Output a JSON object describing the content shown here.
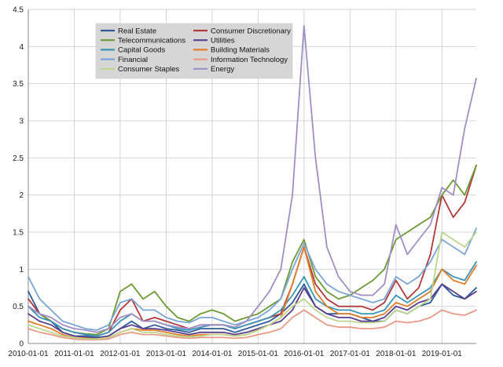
{
  "chart_data": {
    "type": "line",
    "grid": true,
    "legend_placement": "top-left",
    "ylim": [
      0,
      4.5
    ],
    "yticks": [
      0,
      0.5,
      1,
      1.5,
      2,
      2.5,
      3,
      3.5,
      4,
      4.5
    ],
    "ytick_labels": [
      "0",
      "0.5",
      "1",
      "1.5",
      "2",
      "2.5",
      "3",
      "3.5",
      "4",
      "4.5"
    ],
    "xlim": [
      "2010-01-01",
      "2019-10-01"
    ],
    "xticks": [
      "2010-01-01",
      "2011-01-01",
      "2012-01-01",
      "2013-01-01",
      "2014-01-01",
      "2015-01-01",
      "2016-01-01",
      "2017-01-01",
      "2018-01-01",
      "2019-01-01"
    ],
    "x": [
      "2010-01-01",
      "2010-04-01",
      "2010-07-01",
      "2010-10-01",
      "2011-01-01",
      "2011-04-01",
      "2011-07-01",
      "2011-10-01",
      "2012-01-01",
      "2012-04-01",
      "2012-07-01",
      "2012-10-01",
      "2013-01-01",
      "2013-04-01",
      "2013-07-01",
      "2013-10-01",
      "2014-01-01",
      "2014-04-01",
      "2014-07-01",
      "2014-10-01",
      "2015-01-01",
      "2015-04-01",
      "2015-07-01",
      "2015-10-01",
      "2016-01-01",
      "2016-04-01",
      "2016-07-01",
      "2016-10-01",
      "2017-01-01",
      "2017-04-01",
      "2017-07-01",
      "2017-10-01",
      "2018-01-01",
      "2018-04-01",
      "2018-07-01",
      "2018-10-01",
      "2019-01-01",
      "2019-04-01",
      "2019-07-01",
      "2019-10-01"
    ],
    "series": [
      {
        "name": "Real Estate",
        "color": "#2e5a9a",
        "values": [
          0.7,
          0.4,
          0.3,
          0.15,
          0.1,
          0.1,
          0.08,
          0.1,
          0.2,
          0.3,
          0.2,
          0.25,
          0.2,
          0.18,
          0.15,
          0.2,
          0.2,
          0.2,
          0.15,
          0.2,
          0.25,
          0.3,
          0.4,
          0.55,
          0.8,
          0.5,
          0.4,
          0.4,
          0.4,
          0.35,
          0.3,
          0.3,
          0.45,
          0.4,
          0.5,
          0.55,
          0.8,
          0.65,
          0.6,
          0.75
        ]
      },
      {
        "name": "Consumer Discretionary",
        "color": "#b03a3a",
        "values": [
          0.6,
          0.4,
          0.3,
          0.2,
          0.15,
          0.12,
          0.1,
          0.15,
          0.45,
          0.6,
          0.3,
          0.35,
          0.3,
          0.25,
          0.2,
          0.25,
          0.25,
          0.25,
          0.2,
          0.25,
          0.3,
          0.35,
          0.4,
          0.8,
          1.3,
          0.8,
          0.6,
          0.5,
          0.5,
          0.5,
          0.45,
          0.55,
          0.85,
          0.6,
          0.75,
          1.2,
          2.0,
          1.7,
          1.9,
          2.4
        ]
      },
      {
        "name": "Telecommunications",
        "color": "#6d9a35",
        "values": [
          0.5,
          0.4,
          0.3,
          0.2,
          0.15,
          0.13,
          0.12,
          0.2,
          0.7,
          0.8,
          0.6,
          0.7,
          0.5,
          0.35,
          0.3,
          0.4,
          0.45,
          0.4,
          0.3,
          0.35,
          0.4,
          0.5,
          0.6,
          1.1,
          1.4,
          0.9,
          0.7,
          0.6,
          0.65,
          0.75,
          0.85,
          1.0,
          1.4,
          1.5,
          1.6,
          1.7,
          2.0,
          2.2,
          2.0,
          2.4
        ]
      },
      {
        "name": "Utilities",
        "color": "#5b3f8c",
        "values": [
          0.4,
          0.3,
          0.25,
          0.15,
          0.1,
          0.08,
          0.07,
          0.1,
          0.2,
          0.25,
          0.2,
          0.2,
          0.18,
          0.15,
          0.12,
          0.15,
          0.15,
          0.15,
          0.12,
          0.15,
          0.2,
          0.25,
          0.3,
          0.45,
          0.75,
          0.5,
          0.4,
          0.35,
          0.35,
          0.3,
          0.3,
          0.35,
          0.5,
          0.45,
          0.55,
          0.6,
          0.8,
          0.7,
          0.6,
          0.7
        ]
      },
      {
        "name": "Capital Goods",
        "color": "#3a95b8",
        "values": [
          0.5,
          0.35,
          0.3,
          0.2,
          0.15,
          0.12,
          0.1,
          0.15,
          0.3,
          0.4,
          0.3,
          0.3,
          0.25,
          0.2,
          0.18,
          0.22,
          0.25,
          0.25,
          0.2,
          0.25,
          0.3,
          0.35,
          0.45,
          0.65,
          0.9,
          0.6,
          0.5,
          0.45,
          0.45,
          0.4,
          0.4,
          0.45,
          0.65,
          0.55,
          0.65,
          0.75,
          1.0,
          0.9,
          0.85,
          1.1
        ]
      },
      {
        "name": "Building Materials",
        "color": "#e07d2a",
        "values": [
          0.3,
          0.25,
          0.2,
          0.12,
          0.08,
          0.07,
          0.06,
          0.08,
          0.15,
          0.2,
          0.18,
          0.18,
          0.15,
          0.12,
          0.1,
          0.12,
          0.12,
          0.12,
          0.1,
          0.12,
          0.18,
          0.25,
          0.35,
          0.8,
          1.3,
          0.7,
          0.5,
          0.4,
          0.4,
          0.35,
          0.35,
          0.4,
          0.55,
          0.5,
          0.6,
          0.7,
          1.0,
          0.85,
          0.8,
          1.05
        ]
      },
      {
        "name": "Financial",
        "color": "#7aa5d6",
        "values": [
          0.9,
          0.6,
          0.45,
          0.3,
          0.25,
          0.2,
          0.18,
          0.25,
          0.55,
          0.6,
          0.45,
          0.45,
          0.35,
          0.3,
          0.28,
          0.35,
          0.35,
          0.3,
          0.25,
          0.3,
          0.35,
          0.45,
          0.6,
          1.0,
          1.35,
          1.0,
          0.8,
          0.7,
          0.65,
          0.6,
          0.55,
          0.6,
          0.9,
          0.8,
          0.9,
          1.1,
          1.4,
          1.3,
          1.2,
          1.55
        ]
      },
      {
        "name": "Information Technology",
        "color": "#e89a86",
        "values": [
          0.2,
          0.15,
          0.12,
          0.08,
          0.06,
          0.05,
          0.05,
          0.06,
          0.12,
          0.15,
          0.12,
          0.12,
          0.1,
          0.08,
          0.07,
          0.08,
          0.08,
          0.08,
          0.07,
          0.08,
          0.12,
          0.15,
          0.2,
          0.35,
          0.45,
          0.35,
          0.25,
          0.22,
          0.22,
          0.2,
          0.2,
          0.22,
          0.3,
          0.28,
          0.3,
          0.35,
          0.45,
          0.4,
          0.38,
          0.45
        ]
      },
      {
        "name": "Consumer Staples",
        "color": "#bcd68e",
        "values": [
          0.25,
          0.2,
          0.15,
          0.1,
          0.08,
          0.06,
          0.06,
          0.08,
          0.15,
          0.2,
          0.15,
          0.15,
          0.12,
          0.1,
          0.09,
          0.1,
          0.12,
          0.12,
          0.1,
          0.12,
          0.18,
          0.25,
          0.35,
          0.5,
          0.6,
          0.45,
          0.35,
          0.3,
          0.3,
          0.28,
          0.28,
          0.3,
          0.45,
          0.4,
          0.5,
          0.6,
          1.5,
          1.4,
          1.3,
          1.5
        ]
      },
      {
        "name": "Energy",
        "color": "#a08fc4",
        "values": [
          0.5,
          0.4,
          0.35,
          0.25,
          0.2,
          0.18,
          0.15,
          0.2,
          0.35,
          0.4,
          0.3,
          0.3,
          0.25,
          0.22,
          0.2,
          0.25,
          0.25,
          0.25,
          0.22,
          0.3,
          0.5,
          0.7,
          1.0,
          2.0,
          4.28,
          2.5,
          1.3,
          0.9,
          0.7,
          0.65,
          0.65,
          0.8,
          1.6,
          1.2,
          1.4,
          1.6,
          2.1,
          2.0,
          2.9,
          3.57
        ]
      }
    ]
  }
}
